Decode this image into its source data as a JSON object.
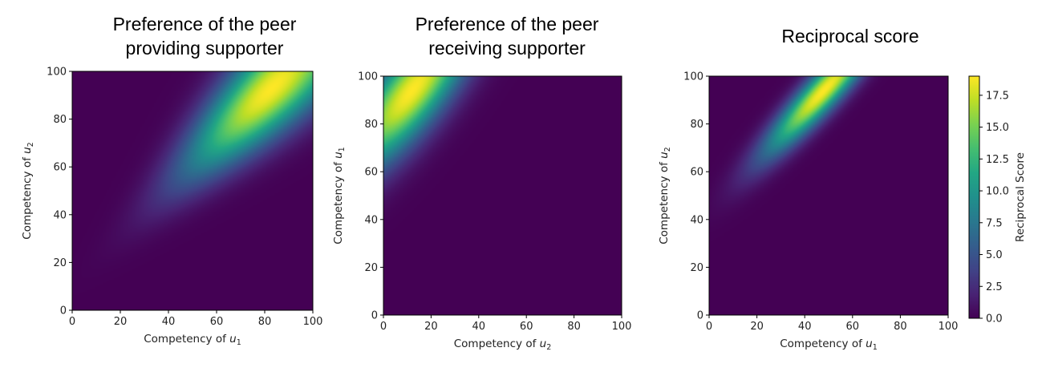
{
  "chart_data": [
    {
      "type": "heatmap",
      "title": [
        "Preference of the peer",
        "providing supporter"
      ],
      "xlabel": {
        "text": "Competency of ",
        "var": "u",
        "sub": "1"
      },
      "ylabel": {
        "text": "Competency of ",
        "var": "u",
        "sub": "2"
      },
      "xlim": [
        0,
        100
      ],
      "ylim": [
        0,
        100
      ],
      "xticks": [
        0,
        20,
        40,
        60,
        80,
        100
      ],
      "yticks": [
        0,
        20,
        40,
        60,
        80,
        100
      ],
      "colormap": "viridis",
      "peak": {
        "x": 80,
        "y": 93,
        "value": 19
      },
      "description_of_field": "broad diagonal ridge, high where both competencies are high"
    },
    {
      "type": "heatmap",
      "title": [
        "Preference of the peer",
        "receiving supporter"
      ],
      "xlabel": {
        "text": "Competency of ",
        "var": "u",
        "sub": "2"
      },
      "ylabel": {
        "text": "Competency of ",
        "var": "u",
        "sub": "1"
      },
      "xlim": [
        0,
        100
      ],
      "ylim": [
        0,
        100
      ],
      "xticks": [
        0,
        20,
        40,
        60,
        80,
        100
      ],
      "yticks": [
        0,
        20,
        40,
        60,
        80,
        100
      ],
      "colormap": "viridis",
      "peak": {
        "x": 15,
        "y": 97,
        "value": 19
      }
    },
    {
      "type": "heatmap",
      "title": [
        "Reciprocal score"
      ],
      "xlabel": {
        "text": "Competency of ",
        "var": "u",
        "sub": "1"
      },
      "ylabel": {
        "text": "Competency of ",
        "var": "u",
        "sub": "2"
      },
      "xlim": [
        0,
        100
      ],
      "ylim": [
        0,
        100
      ],
      "xticks": [
        0,
        20,
        40,
        60,
        80,
        100
      ],
      "yticks": [
        0,
        20,
        40,
        60,
        80,
        100
      ],
      "colormap": "viridis",
      "peak": {
        "x": 50,
        "y": 97,
        "value": 19
      },
      "colorbar": {
        "label": "Reciprocal Score",
        "min": 0,
        "max": 19,
        "ticks": [
          "0.0",
          "2.5",
          "5.0",
          "7.5",
          "10.0",
          "12.5",
          "15.0",
          "17.5"
        ]
      }
    }
  ]
}
